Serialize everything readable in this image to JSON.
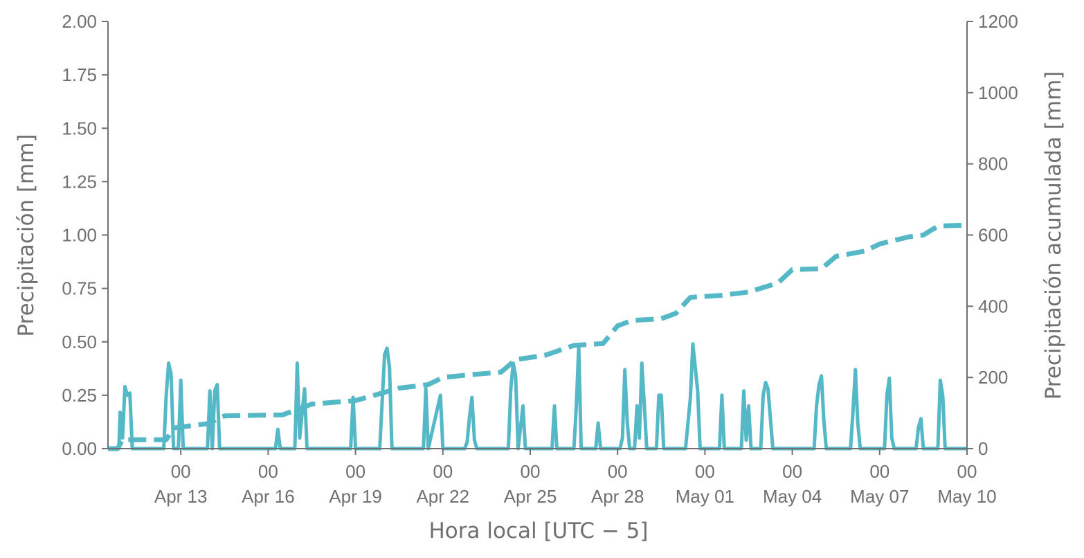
{
  "chart_data": {
    "type": "line",
    "xlabel": "Hora local [UTC − 5]",
    "ylabel_left": "Precipitación [mm]",
    "ylabel_right": "Precipitación acumulada [mm]",
    "xlim": [
      "2020-04-10T12:00",
      "2020-05-10T00:00"
    ],
    "ylim_left": [
      0,
      2.0
    ],
    "ylim_right": [
      0,
      1200
    ],
    "x_ticks": [
      "2020-04-13T00:00",
      "2020-04-16T00:00",
      "2020-04-19T00:00",
      "2020-04-22T00:00",
      "2020-04-25T00:00",
      "2020-04-28T00:00",
      "2020-05-01T00:00",
      "2020-05-04T00:00",
      "2020-05-07T00:00",
      "2020-05-10T00:00"
    ],
    "x_tick_labels_top": [
      "00",
      "00",
      "00",
      "00",
      "00",
      "00",
      "00",
      "00",
      "00",
      "00"
    ],
    "x_tick_labels_bottom": [
      "Apr 13",
      "Apr 16",
      "Apr 19",
      "Apr 22",
      "Apr 25",
      "Apr 28",
      "May 01",
      "May 04",
      "May 07",
      "May 10"
    ],
    "y_ticks_left": [
      "0.00",
      "0.25",
      "0.50",
      "0.75",
      "1.00",
      "1.25",
      "1.50",
      "1.75",
      "2.00"
    ],
    "y_ticks_right": [
      "0",
      "200",
      "400",
      "600",
      "800",
      "1000",
      "1200"
    ],
    "grid": false,
    "color": "#55b8c6",
    "series": [
      {
        "style": "solid",
        "axis": "left",
        "points": [
          [
            "2020-04-10T12:00",
            0
          ],
          [
            "2020-04-10T21:00",
            0
          ],
          [
            "2020-04-10T22:00",
            0.17
          ],
          [
            "2020-04-11T00:00",
            0.05
          ],
          [
            "2020-04-11T02:00",
            0.29
          ],
          [
            "2020-04-11T04:00",
            0.25
          ],
          [
            "2020-04-11T06:00",
            0.26
          ],
          [
            "2020-04-11T08:00",
            0
          ],
          [
            "2020-04-12T10:00",
            0
          ],
          [
            "2020-04-12T12:00",
            0.25
          ],
          [
            "2020-04-12T14:00",
            0.4
          ],
          [
            "2020-04-12T16:00",
            0.35
          ],
          [
            "2020-04-12T18:00",
            0
          ],
          [
            "2020-04-12T22:00",
            0
          ],
          [
            "2020-04-13T00:00",
            0.32
          ],
          [
            "2020-04-13T02:00",
            0
          ],
          [
            "2020-04-13T22:00",
            0
          ],
          [
            "2020-04-14T00:00",
            0.27
          ],
          [
            "2020-04-14T02:00",
            0
          ],
          [
            "2020-04-14T04:00",
            0.27
          ],
          [
            "2020-04-14T06:00",
            0.3
          ],
          [
            "2020-04-14T08:00",
            0
          ],
          [
            "2020-04-16T06:00",
            0
          ],
          [
            "2020-04-16T08:00",
            0.09
          ],
          [
            "2020-04-16T10:00",
            0
          ],
          [
            "2020-04-16T22:00",
            0
          ],
          [
            "2020-04-17T00:00",
            0.4
          ],
          [
            "2020-04-17T02:00",
            0.05
          ],
          [
            "2020-04-17T06:00",
            0.28
          ],
          [
            "2020-04-17T08:00",
            0
          ],
          [
            "2020-04-18T20:00",
            0
          ],
          [
            "2020-04-18T22:00",
            0.24
          ],
          [
            "2020-04-19T00:00",
            0
          ],
          [
            "2020-04-19T20:00",
            0
          ],
          [
            "2020-04-20T00:00",
            0.44
          ],
          [
            "2020-04-20T02:00",
            0.47
          ],
          [
            "2020-04-20T04:00",
            0.38
          ],
          [
            "2020-04-20T06:00",
            0
          ],
          [
            "2020-04-21T08:00",
            0
          ],
          [
            "2020-04-21T10:00",
            0.28
          ],
          [
            "2020-04-21T12:00",
            0
          ],
          [
            "2020-04-21T22:00",
            0.25
          ],
          [
            "2020-04-22T00:00",
            0
          ],
          [
            "2020-04-22T18:00",
            0
          ],
          [
            "2020-04-22T20:00",
            0.03
          ],
          [
            "2020-04-22T22:00",
            0.15
          ],
          [
            "2020-04-23T00:00",
            0.24
          ],
          [
            "2020-04-23T02:00",
            0.04
          ],
          [
            "2020-04-23T04:00",
            0
          ],
          [
            "2020-04-24T06:00",
            0
          ],
          [
            "2020-04-24T08:00",
            0.28
          ],
          [
            "2020-04-24T10:00",
            0.4
          ],
          [
            "2020-04-24T12:00",
            0.34
          ],
          [
            "2020-04-24T14:00",
            0
          ],
          [
            "2020-04-24T18:00",
            0.2
          ],
          [
            "2020-04-24T20:00",
            0
          ],
          [
            "2020-04-25T18:00",
            0
          ],
          [
            "2020-04-25T20:00",
            0.2
          ],
          [
            "2020-04-25T22:00",
            0
          ],
          [
            "2020-04-26T12:00",
            0
          ],
          [
            "2020-04-26T14:00",
            0.2
          ],
          [
            "2020-04-26T16:00",
            0.48
          ],
          [
            "2020-04-26T18:00",
            0
          ],
          [
            "2020-04-27T06:00",
            0
          ],
          [
            "2020-04-27T08:00",
            0.12
          ],
          [
            "2020-04-27T10:00",
            0
          ],
          [
            "2020-04-28T02:00",
            0
          ],
          [
            "2020-04-28T04:00",
            0.05
          ],
          [
            "2020-04-28T06:00",
            0.37
          ],
          [
            "2020-04-28T08:00",
            0.12
          ],
          [
            "2020-04-28T10:00",
            0
          ],
          [
            "2020-04-28T14:00",
            0
          ],
          [
            "2020-04-28T16:00",
            0.2
          ],
          [
            "2020-04-28T18:00",
            0.05
          ],
          [
            "2020-04-28T20:00",
            0.4
          ],
          [
            "2020-04-28T22:00",
            0.21
          ],
          [
            "2020-04-29T00:00",
            0
          ],
          [
            "2020-04-29T08:00",
            0
          ],
          [
            "2020-04-29T10:00",
            0.25
          ],
          [
            "2020-04-29T12:00",
            0.25
          ],
          [
            "2020-04-29T14:00",
            0
          ],
          [
            "2020-04-30T08:00",
            0
          ],
          [
            "2020-04-30T10:00",
            0.12
          ],
          [
            "2020-04-30T12:00",
            0.24
          ],
          [
            "2020-04-30T14:00",
            0.49
          ],
          [
            "2020-04-30T16:00",
            0.38
          ],
          [
            "2020-04-30T18:00",
            0.27
          ],
          [
            "2020-04-30T20:00",
            0
          ],
          [
            "2020-05-01T12:00",
            0
          ],
          [
            "2020-05-01T14:00",
            0.25
          ],
          [
            "2020-05-01T16:00",
            0
          ],
          [
            "2020-05-02T06:00",
            0
          ],
          [
            "2020-05-02T08:00",
            0.27
          ],
          [
            "2020-05-02T10:00",
            0.04
          ],
          [
            "2020-05-02T12:00",
            0.2
          ],
          [
            "2020-05-02T14:00",
            0
          ],
          [
            "2020-05-02T22:00",
            0
          ],
          [
            "2020-05-03T00:00",
            0.25
          ],
          [
            "2020-05-03T02:00",
            0.31
          ],
          [
            "2020-05-03T04:00",
            0.28
          ],
          [
            "2020-05-03T06:00",
            0.14
          ],
          [
            "2020-05-03T08:00",
            0
          ],
          [
            "2020-05-04T18:00",
            0
          ],
          [
            "2020-05-04T20:00",
            0.2
          ],
          [
            "2020-05-04T22:00",
            0.3
          ],
          [
            "2020-05-05T00:00",
            0.34
          ],
          [
            "2020-05-05T02:00",
            0.13
          ],
          [
            "2020-05-05T04:00",
            0
          ],
          [
            "2020-05-06T00:00",
            0
          ],
          [
            "2020-05-06T02:00",
            0.17
          ],
          [
            "2020-05-06T04:00",
            0.37
          ],
          [
            "2020-05-06T06:00",
            0.12
          ],
          [
            "2020-05-06T08:00",
            0
          ],
          [
            "2020-05-07T04:00",
            0
          ],
          [
            "2020-05-07T06:00",
            0.25
          ],
          [
            "2020-05-07T08:00",
            0.33
          ],
          [
            "2020-05-07T10:00",
            0.05
          ],
          [
            "2020-05-07T12:00",
            0
          ],
          [
            "2020-05-08T06:00",
            0
          ],
          [
            "2020-05-08T08:00",
            0.1
          ],
          [
            "2020-05-08T10:00",
            0.14
          ],
          [
            "2020-05-08T12:00",
            0
          ],
          [
            "2020-05-09T00:00",
            0
          ],
          [
            "2020-05-09T02:00",
            0.32
          ],
          [
            "2020-05-09T04:00",
            0.25
          ],
          [
            "2020-05-09T06:00",
            0
          ],
          [
            "2020-05-10T00:00",
            0
          ]
        ]
      },
      {
        "style": "dashed",
        "axis": "right",
        "points": [
          [
            "2020-04-10T12:00",
            0
          ],
          [
            "2020-04-10T20:00",
            0
          ],
          [
            "2020-04-11T00:00",
            25
          ],
          [
            "2020-04-12T12:00",
            25
          ],
          [
            "2020-04-12T18:00",
            58
          ],
          [
            "2020-04-13T22:00",
            70
          ],
          [
            "2020-04-14T12:00",
            92
          ],
          [
            "2020-04-16T12:00",
            95
          ],
          [
            "2020-04-17T12:00",
            125
          ],
          [
            "2020-04-19T00:00",
            135
          ],
          [
            "2020-04-20T12:00",
            170
          ],
          [
            "2020-04-21T12:00",
            180
          ],
          [
            "2020-04-22T00:00",
            200
          ],
          [
            "2020-04-23T00:00",
            208
          ],
          [
            "2020-04-24T00:00",
            215
          ],
          [
            "2020-04-24T12:00",
            250
          ],
          [
            "2020-04-25T12:00",
            262
          ],
          [
            "2020-04-26T12:00",
            290
          ],
          [
            "2020-04-27T12:00",
            295
          ],
          [
            "2020-04-28T00:00",
            345
          ],
          [
            "2020-04-28T12:00",
            360
          ],
          [
            "2020-04-29T12:00",
            365
          ],
          [
            "2020-04-30T00:00",
            380
          ],
          [
            "2020-04-30T12:00",
            425
          ],
          [
            "2020-05-01T12:00",
            430
          ],
          [
            "2020-05-02T12:00",
            440
          ],
          [
            "2020-05-03T12:00",
            465
          ],
          [
            "2020-05-04T00:00",
            503
          ],
          [
            "2020-05-05T00:00",
            505
          ],
          [
            "2020-05-05T12:00",
            540
          ],
          [
            "2020-05-06T12:00",
            555
          ],
          [
            "2020-05-07T00:00",
            575
          ],
          [
            "2020-05-08T00:00",
            595
          ],
          [
            "2020-05-08T12:00",
            600
          ],
          [
            "2020-05-09T00:00",
            625
          ],
          [
            "2020-05-10T00:00",
            628
          ]
        ]
      }
    ]
  }
}
